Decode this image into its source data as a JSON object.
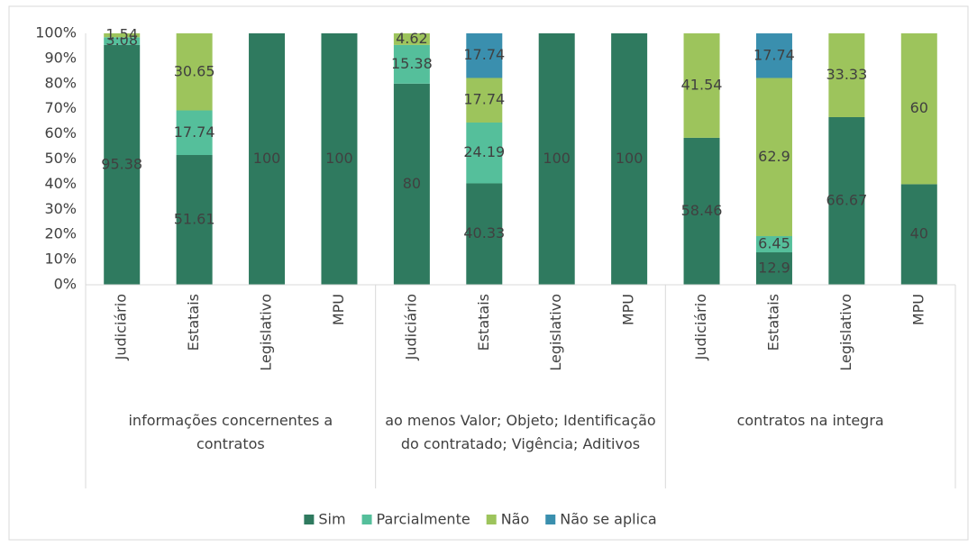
{
  "chart_data": {
    "type": "stacked_bar",
    "groups": [
      "informações concernentes a contratos",
      "ao menos Valor; Objeto; Identificação do contratado; Vigência; Aditivos",
      "contratos na integra"
    ],
    "categories": [
      "Judiciário",
      "Estatais",
      "Legislativo",
      "MPU",
      "Judiciário",
      "Estatais",
      "Legislativo",
      "MPU",
      "Judiciário",
      "Estatais",
      "Legislativo",
      "MPU"
    ],
    "series": [
      {
        "name": "Sim",
        "color": "#2f7a5f",
        "values": [
          95.38,
          51.61,
          100,
          100,
          80,
          40.33,
          100,
          100,
          58.46,
          12.9,
          66.67,
          40
        ]
      },
      {
        "name": "Parcialmente",
        "color": "#55bf9b",
        "values": [
          3.08,
          17.74,
          null,
          null,
          15.38,
          24.19,
          null,
          null,
          null,
          6.45,
          null,
          null
        ]
      },
      {
        "name": "Não",
        "color": "#9dc45c",
        "values": [
          1.54,
          30.65,
          null,
          null,
          4.62,
          17.74,
          null,
          null,
          41.54,
          62.9,
          33.33,
          60
        ]
      },
      {
        "name": "Não se aplica",
        "color": "#3a8fae",
        "values": [
          null,
          null,
          null,
          null,
          null,
          17.74,
          null,
          null,
          null,
          17.74,
          null,
          null
        ]
      }
    ],
    "ylim": [
      0,
      100
    ],
    "yticks": [
      {
        "value": 0,
        "label": "0%"
      },
      {
        "value": 10,
        "label": "10%"
      },
      {
        "value": 20,
        "label": "20%"
      },
      {
        "value": 30,
        "label": "30%"
      },
      {
        "value": 40,
        "label": "40%"
      },
      {
        "value": 50,
        "label": "50%"
      },
      {
        "value": 60,
        "label": "60%"
      },
      {
        "value": 70,
        "label": "70%"
      },
      {
        "value": 80,
        "label": "80%"
      },
      {
        "value": 90,
        "label": "90%"
      },
      {
        "value": 100,
        "label": "100%"
      }
    ],
    "legend": "bottom"
  }
}
